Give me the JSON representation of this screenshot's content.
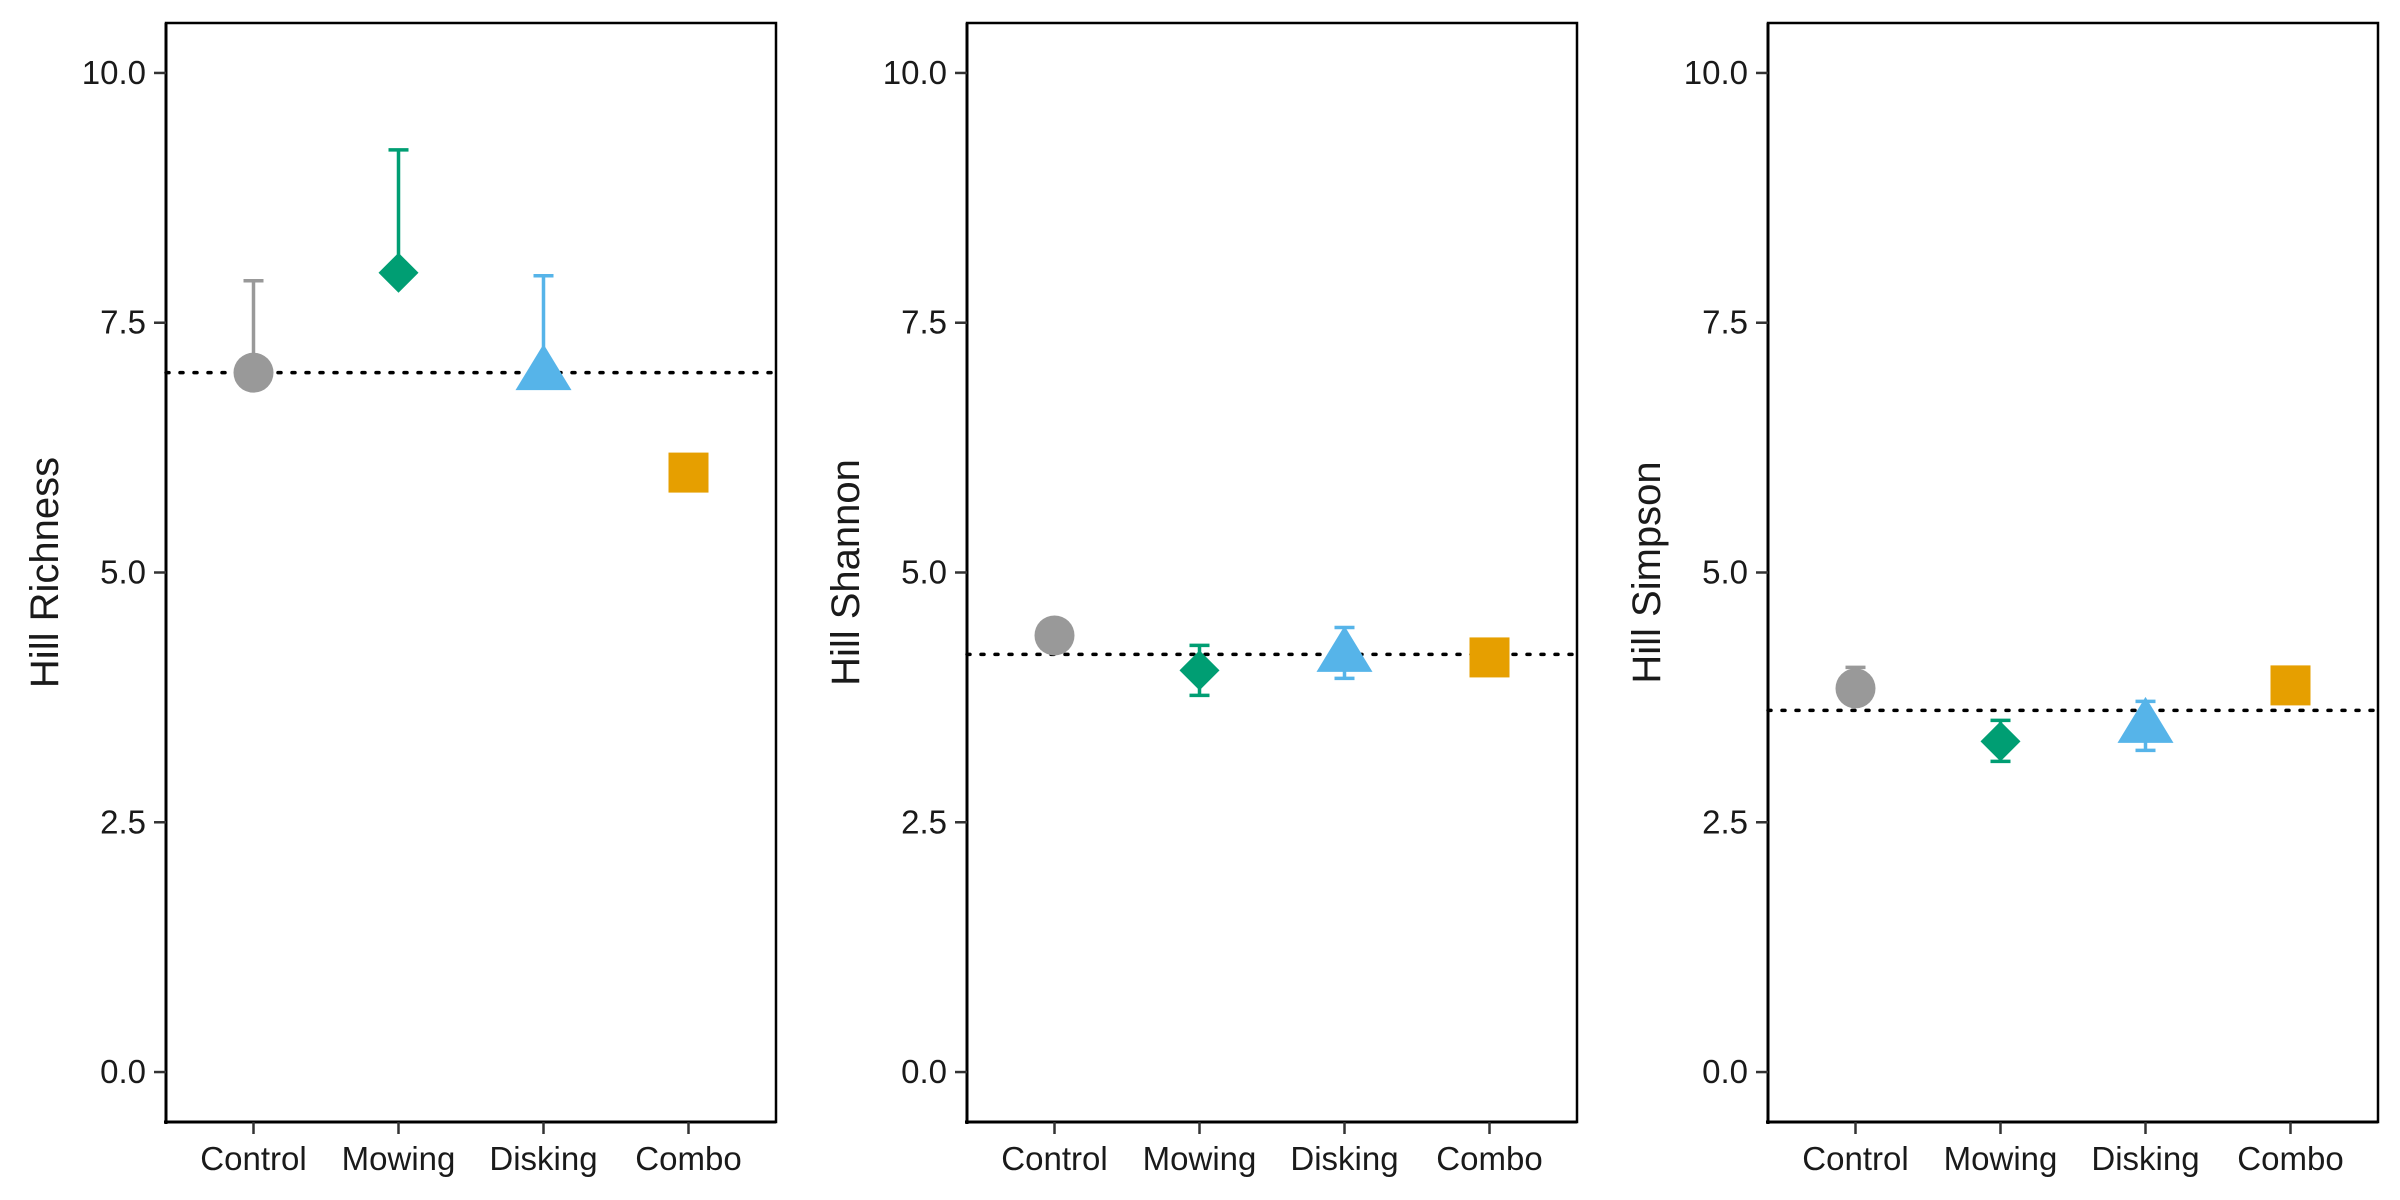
{
  "figure": {
    "colors": {
      "Control": "#999999",
      "Mowing": "#009E73",
      "Disking": "#56B4E9",
      "Combo": "#E69F00"
    },
    "shapes": {
      "Control": "circle",
      "Mowing": "diamond",
      "Disking": "triangle",
      "Combo": "square"
    }
  },
  "chart_data": [
    {
      "type": "scatter",
      "title": "",
      "xlabel": "",
      "ylabel": "Hill Richness",
      "categories": [
        "Control",
        "Mowing",
        "Disking",
        "Combo"
      ],
      "values": [
        7.0,
        8.0,
        7.0,
        6.0
      ],
      "error_upper": [
        7.92,
        9.23,
        7.97,
        6.0
      ],
      "error_lower": [
        7.0,
        8.0,
        7.0,
        6.0
      ],
      "reference_line": 7.0,
      "ylim": [
        -0.5,
        10.5
      ],
      "yticks": [
        "0.0",
        "2.5",
        "5.0",
        "7.5",
        "10.0"
      ],
      "ytick_values": [
        0,
        2.5,
        5,
        7.5,
        10
      ],
      "grid": false
    },
    {
      "type": "scatter",
      "title": "",
      "xlabel": "",
      "ylabel": "Hill Shannon",
      "categories": [
        "Control",
        "Mowing",
        "Disking",
        "Combo"
      ],
      "values": [
        4.37,
        4.02,
        4.18,
        4.15
      ],
      "error_upper": [
        4.51,
        4.27,
        4.45,
        4.15
      ],
      "error_lower": [
        4.37,
        3.77,
        3.94,
        4.15
      ],
      "reference_line": 4.18,
      "ylim": [
        -0.5,
        10.5
      ],
      "yticks": [
        "0.0",
        "2.5",
        "5.0",
        "7.5",
        "10.0"
      ],
      "ytick_values": [
        0,
        2.5,
        5,
        7.5,
        10
      ],
      "grid": false
    },
    {
      "type": "scatter",
      "title": "",
      "xlabel": "",
      "ylabel": "Hill Simpson",
      "categories": [
        "Control",
        "Mowing",
        "Disking",
        "Combo"
      ],
      "values": [
        3.84,
        3.31,
        3.47,
        3.87
      ],
      "error_upper": [
        4.05,
        3.52,
        3.71,
        3.87
      ],
      "error_lower": [
        3.84,
        3.11,
        3.22,
        3.87
      ],
      "reference_line": 3.62,
      "ylim": [
        -0.5,
        10.5
      ],
      "yticks": [
        "0.0",
        "2.5",
        "5.0",
        "7.5",
        "10.0"
      ],
      "ytick_values": [
        0,
        2.5,
        5,
        7.5,
        10
      ],
      "grid": false
    }
  ]
}
